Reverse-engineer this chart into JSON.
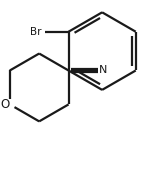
{
  "background_color": "#ffffff",
  "line_color": "#1a1a1a",
  "line_width": 1.6,
  "figsize": [
    1.66,
    1.72
  ],
  "dpi": 100,
  "br_label": "Br",
  "n_label": "N",
  "o_label": "O"
}
